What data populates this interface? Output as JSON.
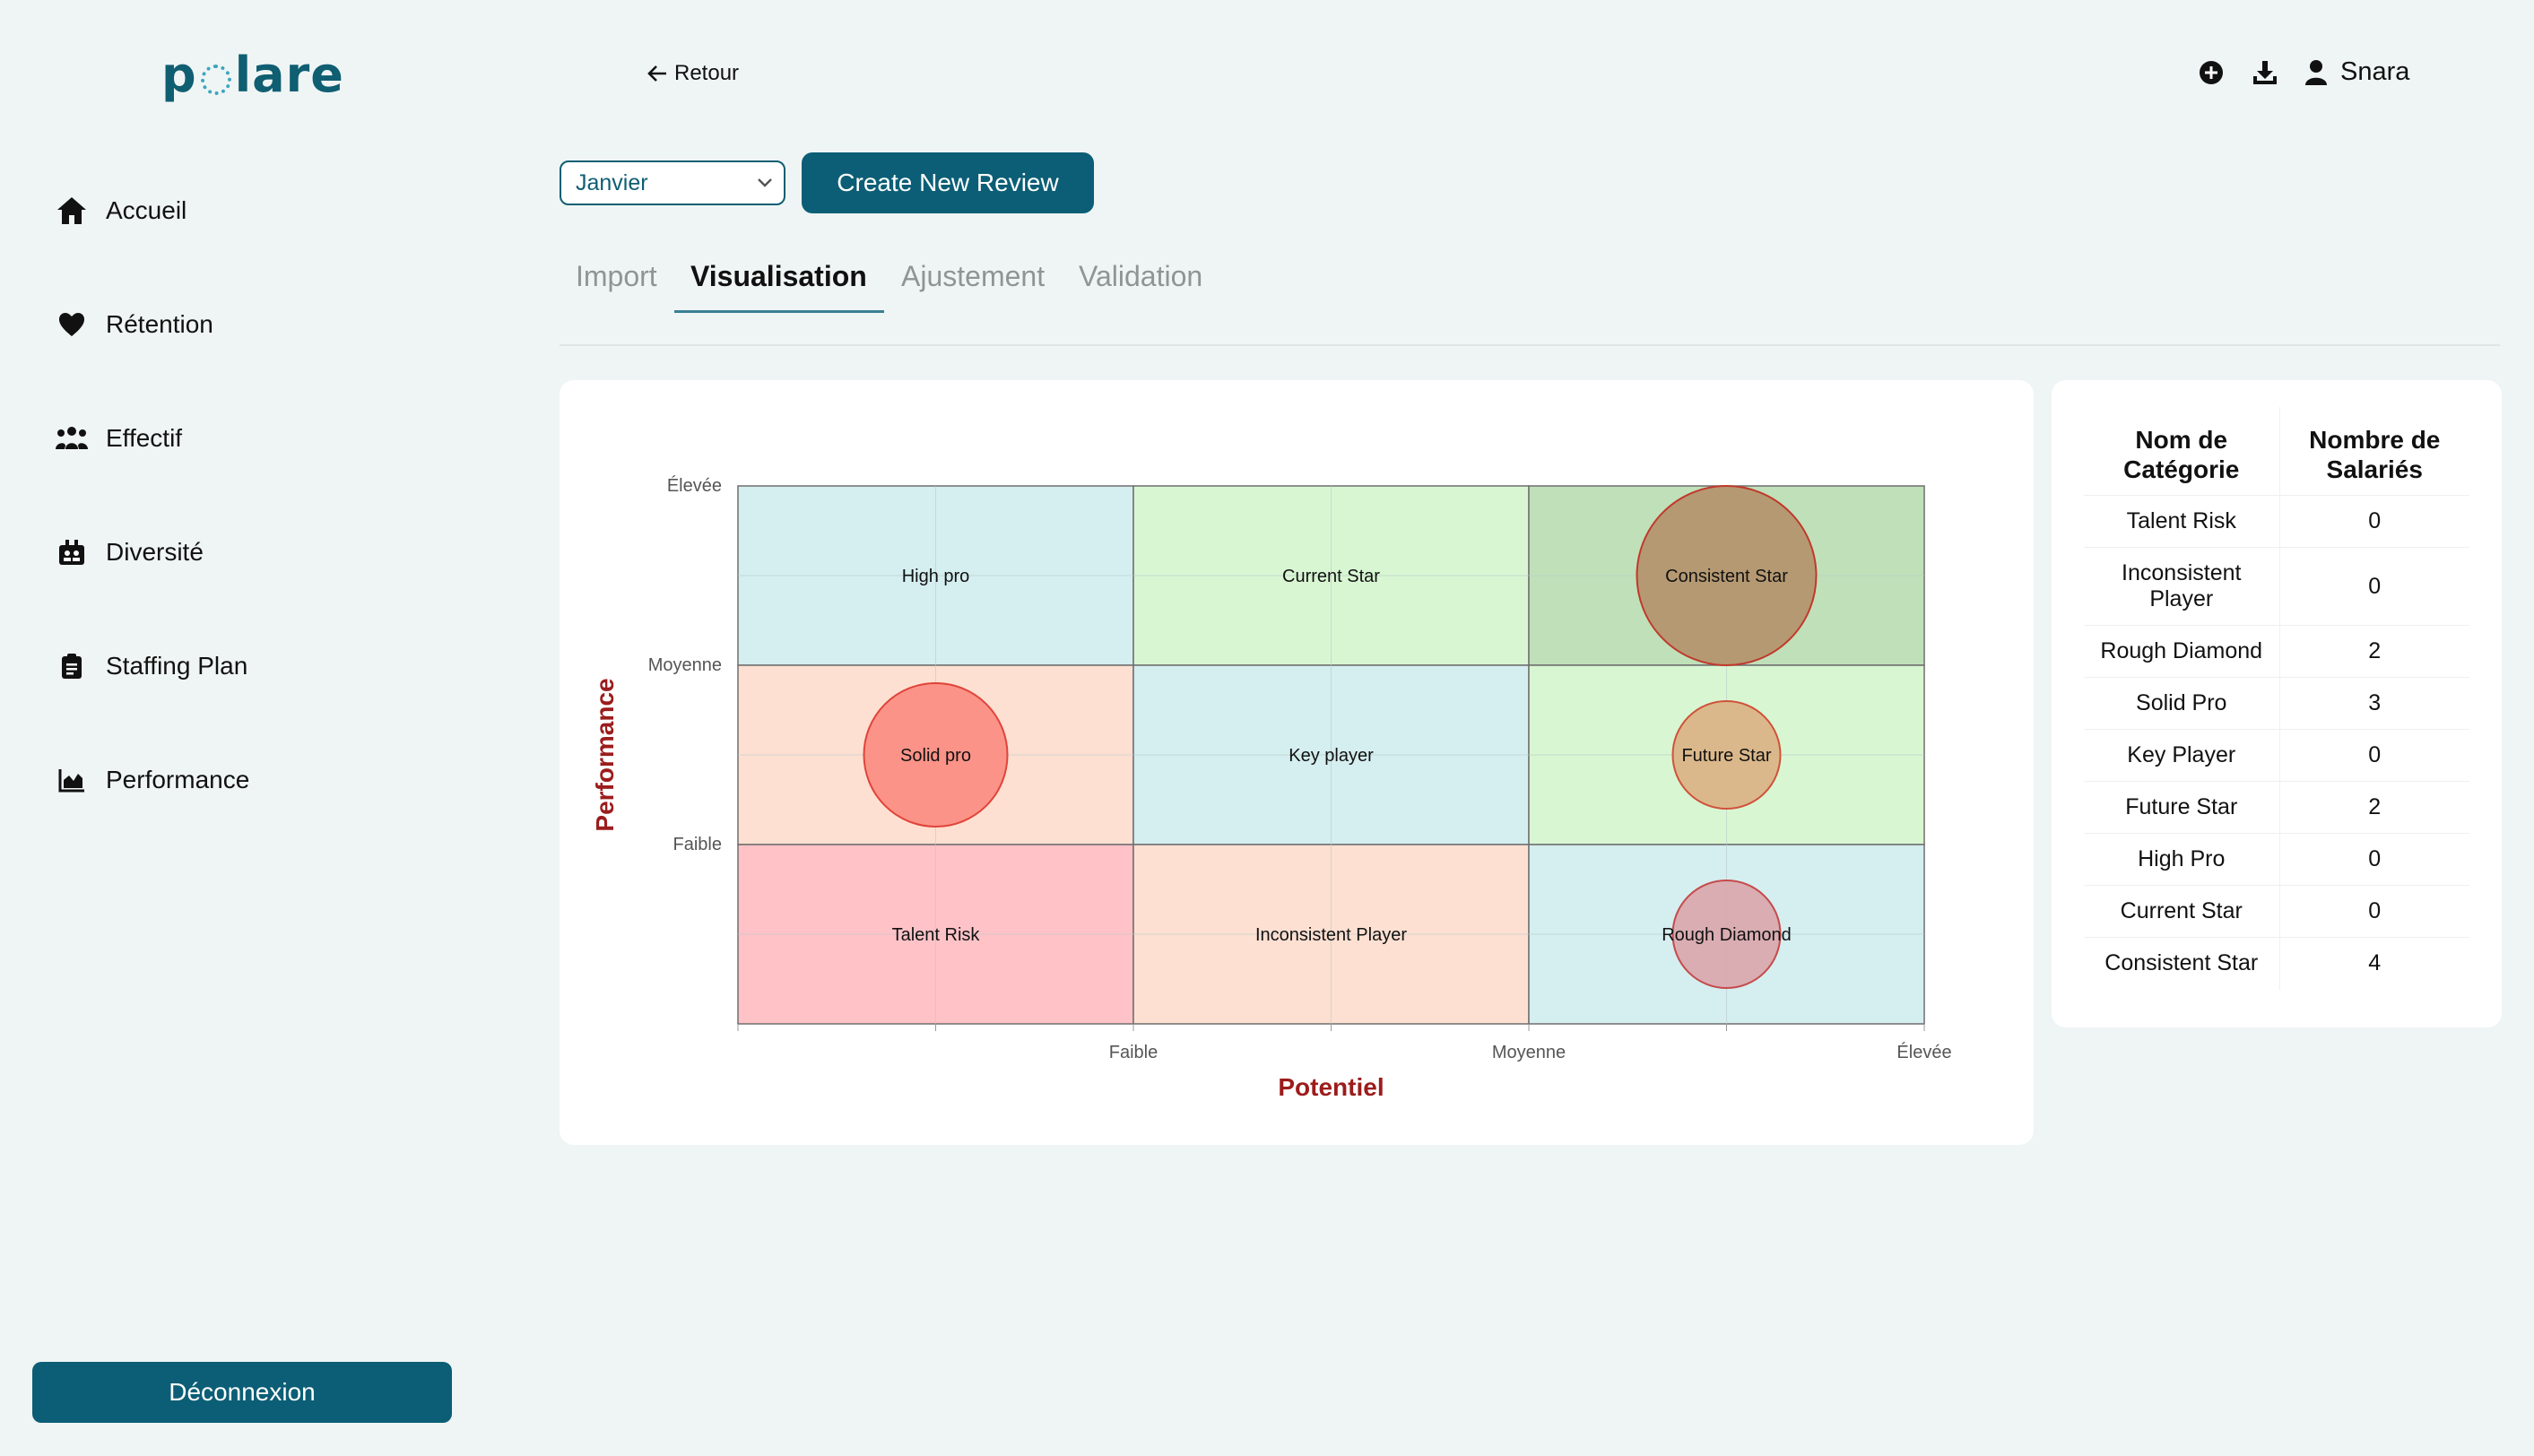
{
  "app": {
    "logo_left": "p",
    "logo_right": "lare"
  },
  "sidebar": {
    "items": [
      {
        "label": "Accueil",
        "icon": "home-icon"
      },
      {
        "label": "Rétention",
        "icon": "heart-icon"
      },
      {
        "label": "Effectif",
        "icon": "users-icon"
      },
      {
        "label": "Diversité",
        "icon": "diversity-icon"
      },
      {
        "label": "Staffing Plan",
        "icon": "clipboard-icon"
      },
      {
        "label": "Performance",
        "icon": "chart-area-icon"
      }
    ],
    "logout_label": "Déconnexion"
  },
  "header": {
    "back_label": "Retour",
    "user_name": "Snara"
  },
  "controls": {
    "month": "Janvier",
    "create_label": "Create New Review"
  },
  "tabs": [
    "Import",
    "Visualisation",
    "Ajustement",
    "Validation"
  ],
  "colors": {
    "primary": "#0b5e75",
    "axis_title": "#9c1c1c"
  },
  "chart_data": {
    "type": "scatter",
    "xlabel": "Potentiel",
    "ylabel": "Performance",
    "x_ticks": [
      "Faible",
      "Moyenne",
      "Élevée"
    ],
    "y_ticks": [
      "Élevée",
      "Moyenne",
      "Faible"
    ],
    "cells": [
      {
        "label": "High pro",
        "col": 0,
        "row": 0,
        "fill": "#d5eef0"
      },
      {
        "label": "Current Star",
        "col": 1,
        "row": 0,
        "fill": "#d8f6d2"
      },
      {
        "label": "Consistent Star",
        "col": 2,
        "row": 0,
        "fill": "#c0e0b9"
      },
      {
        "label": "Solid pro",
        "col": 0,
        "row": 1,
        "fill": "#fde0d2"
      },
      {
        "label": "Key player",
        "col": 1,
        "row": 1,
        "fill": "#d5eef0"
      },
      {
        "label": "Future Star",
        "col": 2,
        "row": 1,
        "fill": "#d8f6d2"
      },
      {
        "label": "Talent Risk",
        "col": 0,
        "row": 2,
        "fill": "#ffc2c7"
      },
      {
        "label": "Inconsistent Player",
        "col": 1,
        "row": 2,
        "fill": "#fde0d2"
      },
      {
        "label": "Rough Diamond",
        "col": 2,
        "row": 2,
        "fill": "#d5eef0"
      }
    ],
    "bubbles": [
      {
        "category": "Consistent Star",
        "col": 2,
        "row": 0,
        "count": 4,
        "fill": "#b4956e",
        "stroke": "#c0392b"
      },
      {
        "category": "Solid pro",
        "col": 0,
        "row": 1,
        "count": 3,
        "fill": "#fb8e84",
        "stroke": "#e0443a"
      },
      {
        "category": "Future Star",
        "col": 2,
        "row": 1,
        "count": 2,
        "fill": "#dbb487",
        "stroke": "#d0523a"
      },
      {
        "category": "Rough Diamond",
        "col": 2,
        "row": 2,
        "count": 2,
        "fill": "#d9a9ae",
        "stroke": "#c64a4a"
      }
    ]
  },
  "summary_table": {
    "headers": [
      "Nom de Catégorie",
      "Nombre de Salariés"
    ],
    "rows": [
      {
        "name": "Talent Risk",
        "count": "0"
      },
      {
        "name": "Inconsistent Player",
        "count": "0"
      },
      {
        "name": "Rough Diamond",
        "count": "2"
      },
      {
        "name": "Solid Pro",
        "count": "3"
      },
      {
        "name": "Key Player",
        "count": "0"
      },
      {
        "name": "Future Star",
        "count": "2"
      },
      {
        "name": "High Pro",
        "count": "0"
      },
      {
        "name": "Current Star",
        "count": "0"
      },
      {
        "name": "Consistent Star",
        "count": "4"
      }
    ]
  }
}
